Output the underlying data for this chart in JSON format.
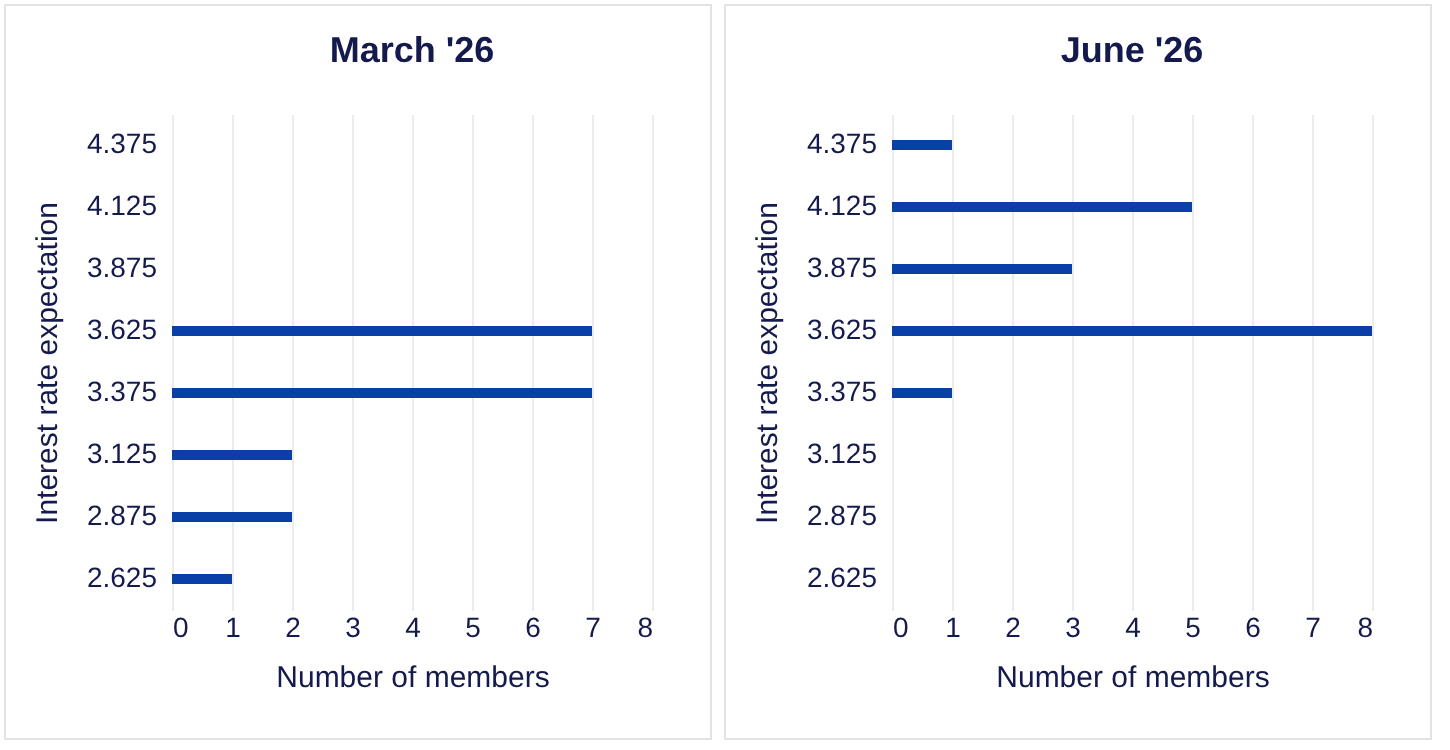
{
  "chart_data": [
    {
      "type": "bar",
      "orientation": "horizontal",
      "title": "March '26",
      "xlabel": "Number of members",
      "ylabel": "Interest rate expectation",
      "categories": [
        "4.375",
        "4.125",
        "3.875",
        "3.625",
        "3.375",
        "3.125",
        "2.875",
        "2.625"
      ],
      "values": [
        0,
        0,
        0,
        7,
        7,
        2,
        2,
        1
      ],
      "color": "#0b3fa8",
      "xlim": [
        0,
        8
      ],
      "xticks": [
        0,
        1,
        2,
        3,
        4,
        5,
        6,
        7,
        8
      ],
      "grid": "x"
    },
    {
      "type": "bar",
      "orientation": "horizontal",
      "title": "June '26",
      "xlabel": "Number of members",
      "ylabel": "Interest rate expectation",
      "categories": [
        "4.375",
        "4.125",
        "3.875",
        "3.625",
        "3.375",
        "3.125",
        "2.875",
        "2.625"
      ],
      "values": [
        1,
        5,
        3,
        8,
        1,
        0,
        0,
        0
      ],
      "color": "#0b3fa8",
      "xlim": [
        0,
        8
      ],
      "xticks": [
        0,
        1,
        2,
        3,
        4,
        5,
        6,
        7,
        8
      ],
      "grid": "x"
    }
  ]
}
